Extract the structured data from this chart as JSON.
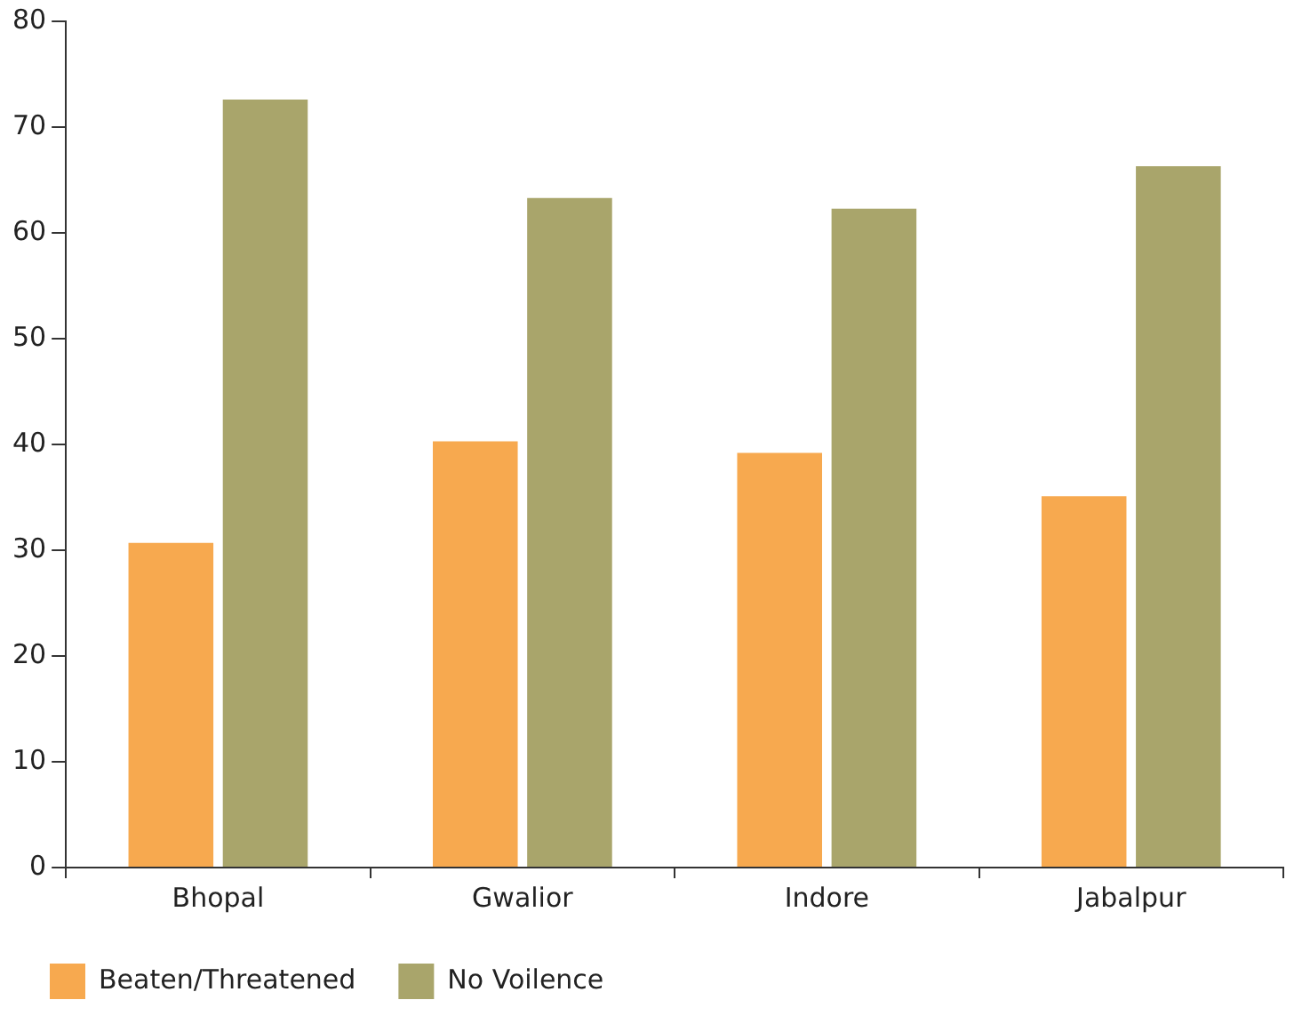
{
  "chart_data": {
    "type": "bar",
    "categories": [
      "Bhopal",
      "Gwalior",
      "Indore",
      "Jabalpur"
    ],
    "series": [
      {
        "name": "Beaten/Threatened",
        "color": "#f7a94f",
        "values": [
          30.7,
          40.3,
          39.2,
          35.1
        ]
      },
      {
        "name": "No Voilence",
        "color": "#a9a56b",
        "values": [
          72.6,
          63.3,
          62.3,
          66.3
        ]
      }
    ],
    "ylim": [
      0,
      80
    ],
    "yticks": [
      0,
      10,
      20,
      30,
      40,
      50,
      60,
      70,
      80
    ],
    "grid": false,
    "legend": "bottom left"
  }
}
